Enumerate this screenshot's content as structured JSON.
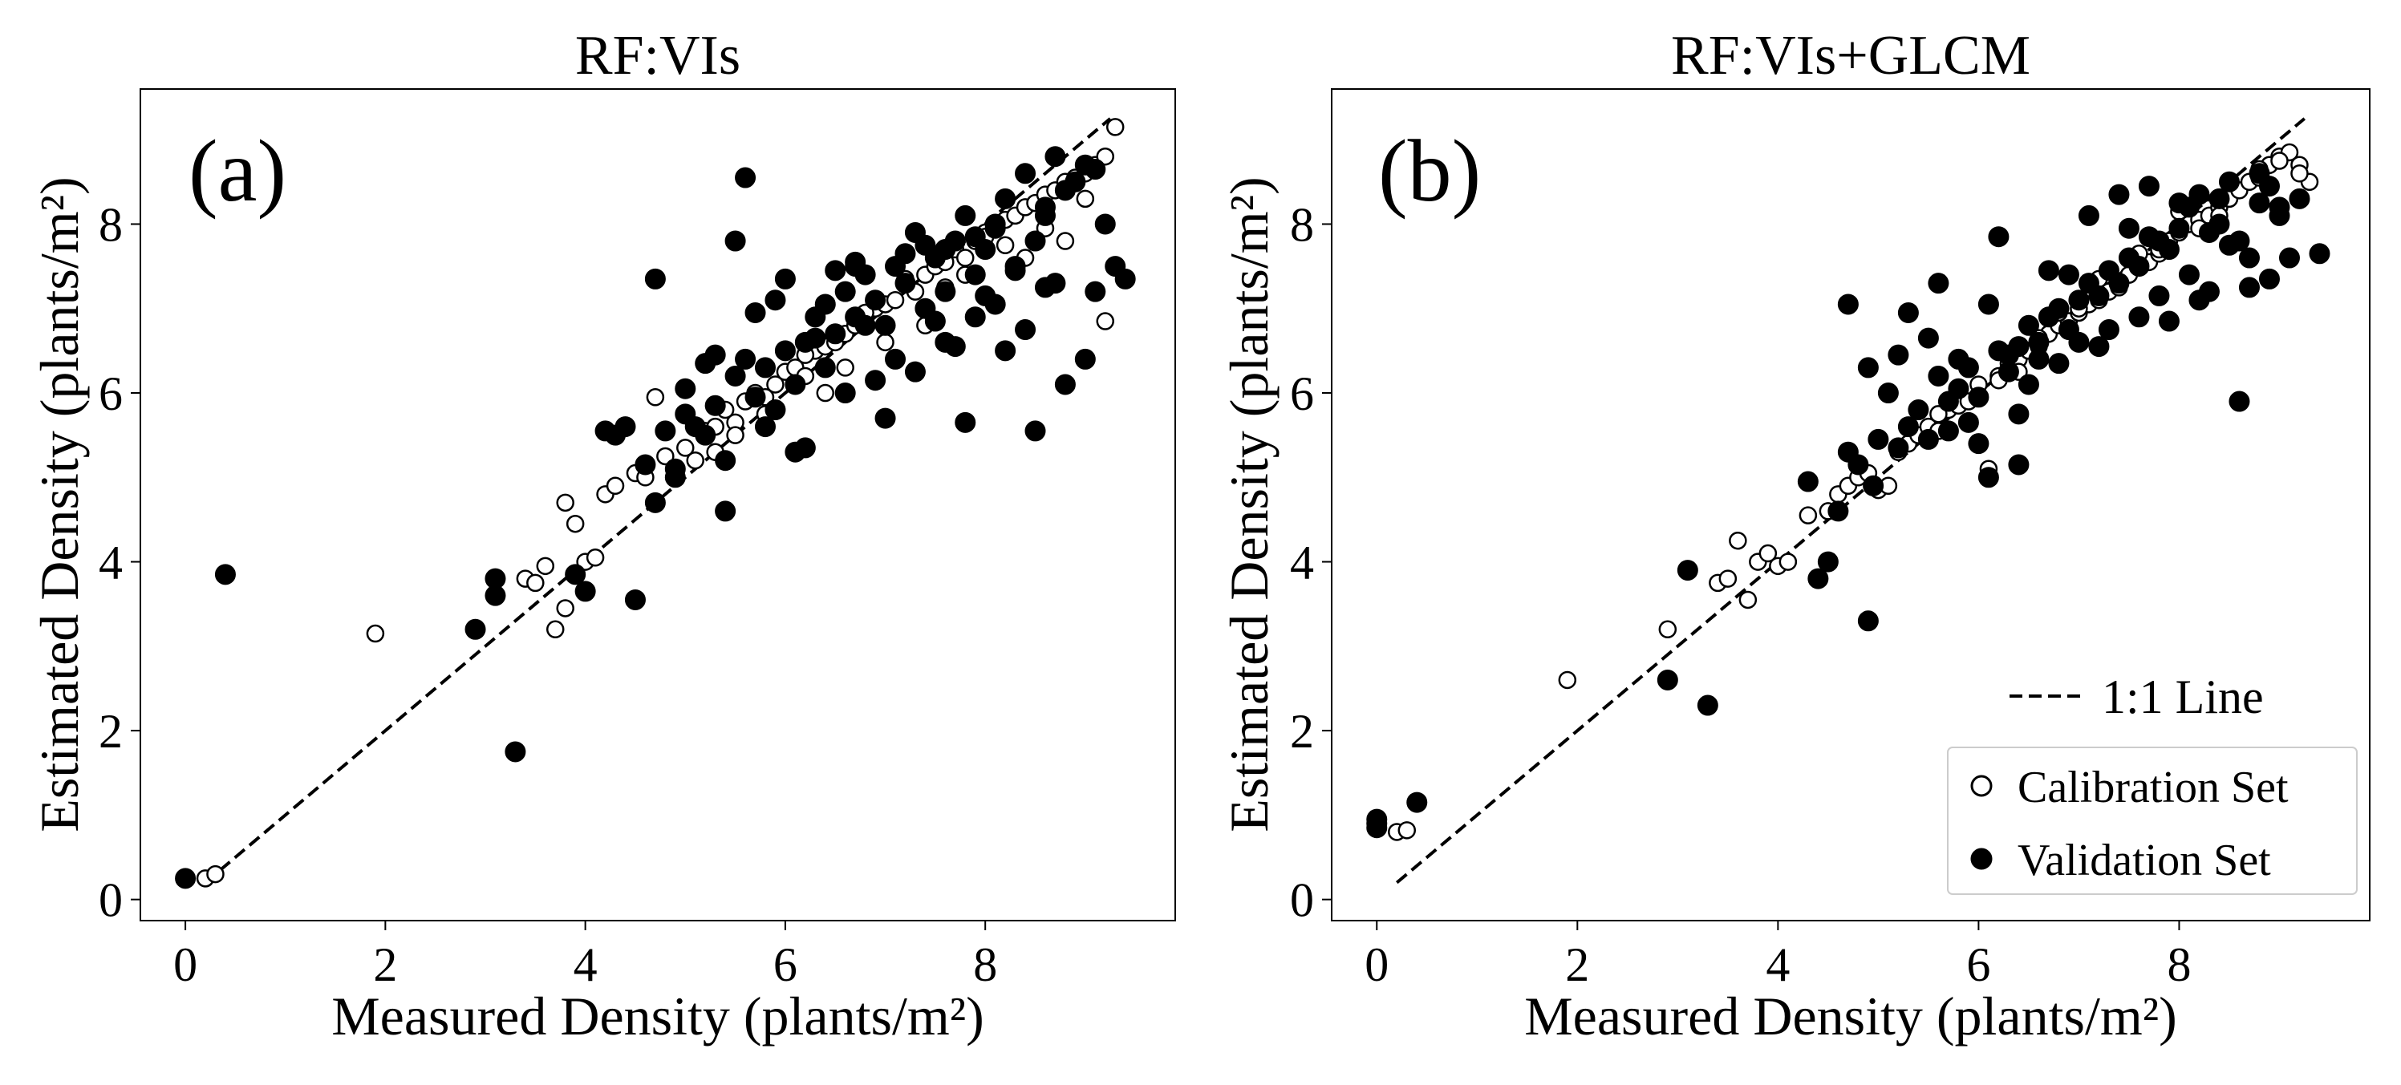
{
  "figure": {
    "legend": {
      "line_label": "1:1 Line",
      "calibration_label": "Calibration Set",
      "validation_label": "Validation Set"
    }
  },
  "colors": {
    "calibration_fill": "#ffffff",
    "marker_edge": "#000000",
    "validation_fill": "#000000",
    "one_to_one_line": "#000000"
  },
  "chart_data": [
    {
      "type": "scatter",
      "panel_label": "(a)",
      "title": "RF:VIs",
      "xlabel": "Measured Density (plants/m²)",
      "ylabel": "Estimated Density (plants/m²)",
      "xlim": [
        -0.45,
        9.9
      ],
      "ylim": [
        -0.25,
        9.6
      ],
      "xticks": [
        0,
        2,
        4,
        6,
        8
      ],
      "yticks": [
        0,
        2,
        4,
        6,
        8
      ],
      "one_to_one": [
        [
          0.2,
          0.2
        ],
        [
          9.25,
          9.25
        ]
      ],
      "legend": false,
      "series": [
        {
          "name": "Calibration Set",
          "x": [
            0.2,
            0.3,
            1.9,
            3.4,
            3.5,
            3.6,
            3.7,
            3.8,
            3.8,
            3.9,
            4.0,
            4.1,
            4.2,
            4.3,
            4.5,
            4.6,
            4.7,
            4.8,
            4.9,
            5.0,
            5.1,
            5.2,
            5.3,
            5.4,
            5.5,
            5.6,
            5.7,
            5.8,
            5.9,
            6.0,
            6.1,
            6.2,
            6.3,
            6.4,
            6.5,
            6.6,
            6.7,
            6.8,
            6.9,
            7.0,
            7.1,
            7.2,
            7.3,
            7.4,
            7.5,
            7.6,
            7.7,
            7.8,
            7.9,
            8.0,
            8.1,
            8.2,
            8.3,
            8.4,
            8.5,
            8.6,
            8.7,
            8.8,
            8.9,
            9.0,
            9.1,
            9.2,
            9.3,
            5.5,
            5.8,
            6.2,
            6.6,
            7.0,
            7.4,
            7.8,
            8.2,
            8.6,
            9.0,
            6.4,
            7.2,
            8.0,
            8.8,
            5.3,
            6.8,
            7.6,
            8.4,
            9.2
          ],
          "y": [
            0.25,
            0.3,
            3.15,
            3.8,
            3.75,
            3.95,
            3.2,
            3.45,
            4.7,
            4.45,
            4.0,
            4.05,
            4.8,
            4.9,
            5.05,
            5.0,
            5.95,
            5.25,
            5.1,
            5.35,
            5.2,
            5.55,
            5.6,
            5.8,
            5.65,
            5.9,
            6.0,
            5.75,
            6.1,
            6.25,
            6.3,
            6.2,
            6.5,
            6.55,
            6.6,
            6.7,
            6.8,
            6.9,
            7.0,
            7.05,
            7.1,
            7.3,
            7.2,
            7.4,
            7.5,
            7.55,
            7.7,
            7.6,
            7.8,
            7.9,
            8.0,
            8.05,
            8.1,
            8.2,
            8.25,
            8.35,
            8.4,
            8.5,
            8.55,
            8.6,
            8.7,
            8.8,
            9.15,
            5.5,
            5.95,
            6.45,
            6.3,
            6.6,
            6.8,
            7.4,
            7.75,
            7.95,
            8.3,
            6.0,
            7.35,
            7.85,
            7.8,
            5.3,
            6.95,
            7.25,
            7.6,
            6.85
          ]
        },
        {
          "name": "Validation Set",
          "x": [
            0.0,
            0.4,
            2.9,
            3.1,
            3.3,
            3.9,
            4.0,
            4.2,
            4.3,
            4.5,
            4.6,
            4.7,
            4.8,
            4.9,
            5.0,
            5.1,
            5.2,
            5.3,
            5.4,
            5.5,
            5.6,
            5.7,
            5.8,
            5.9,
            6.0,
            6.1,
            6.2,
            6.3,
            6.4,
            6.5,
            6.6,
            6.7,
            6.8,
            6.9,
            7.0,
            7.1,
            7.2,
            7.3,
            7.4,
            7.5,
            7.6,
            7.7,
            7.8,
            7.9,
            8.0,
            8.1,
            8.2,
            8.3,
            8.4,
            8.5,
            8.6,
            8.7,
            8.8,
            8.9,
            9.0,
            9.1,
            9.2,
            9.3,
            9.4,
            5.6,
            5.5,
            4.7,
            5.0,
            5.3,
            5.8,
            6.1,
            6.4,
            6.7,
            7.0,
            7.3,
            7.6,
            7.9,
            8.2,
            8.5,
            8.8,
            9.1,
            5.2,
            5.7,
            6.2,
            6.5,
            6.9,
            7.2,
            7.5,
            7.8,
            8.1,
            8.4,
            8.7,
            5.9,
            6.3,
            6.6,
            7.4,
            7.7,
            8.0,
            8.3,
            9.0,
            6.0,
            6.8,
            7.1,
            7.9,
            8.6,
            4.4,
            3.1,
            4.9,
            5.4,
            6.7,
            7.6,
            8.1,
            8.6
          ],
          "y": [
            0.25,
            3.85,
            3.2,
            3.6,
            1.75,
            3.85,
            3.65,
            5.55,
            5.5,
            3.55,
            5.15,
            4.7,
            5.55,
            5.1,
            5.75,
            5.6,
            5.5,
            5.85,
            5.2,
            6.2,
            6.4,
            5.95,
            6.3,
            5.8,
            6.5,
            6.1,
            6.6,
            6.9,
            6.3,
            6.7,
            7.2,
            6.9,
            7.4,
            7.1,
            6.8,
            7.5,
            7.3,
            7.9,
            7.0,
            7.6,
            7.2,
            7.8,
            8.1,
            7.4,
            7.7,
            8.0,
            8.3,
            7.5,
            8.6,
            7.8,
            8.2,
            8.8,
            8.4,
            8.5,
            8.7,
            7.2,
            8.0,
            7.5,
            7.35,
            8.55,
            7.8,
            7.35,
            6.05,
            6.45,
            5.6,
            5.3,
            7.05,
            7.55,
            5.7,
            6.25,
            6.6,
            7.85,
            6.5,
            5.55,
            6.1,
            8.65,
            6.35,
            6.95,
            5.35,
            7.45,
            6.15,
            7.65,
            6.85,
            5.65,
            7.05,
            6.75,
            7.3,
            7.1,
            6.65,
            6.0,
            7.75,
            6.55,
            7.15,
            7.45,
            6.4,
            7.35,
            6.8,
            6.4,
            6.9,
            8.1,
            5.6,
            3.8,
            5.0,
            4.6,
            7.5,
            7.7,
            7.95,
            7.25
          ]
        }
      ]
    },
    {
      "type": "scatter",
      "panel_label": "(b)",
      "title": "RF:VIs+GLCM",
      "xlabel": "Measured Density (plants/m²)",
      "ylabel": "Estimated Density (plants/m²)",
      "xlim": [
        -0.45,
        9.9
      ],
      "ylim": [
        -0.25,
        9.6
      ],
      "xticks": [
        0,
        2,
        4,
        6,
        8
      ],
      "yticks": [
        0,
        2,
        4,
        6,
        8
      ],
      "one_to_one": [
        [
          0.2,
          0.2
        ],
        [
          9.25,
          9.25
        ]
      ],
      "legend": true,
      "legend_position": "lower-right",
      "series": [
        {
          "name": "Calibration Set",
          "x": [
            0.2,
            0.3,
            1.9,
            2.9,
            3.4,
            3.5,
            3.6,
            3.7,
            3.8,
            3.9,
            4.0,
            4.1,
            4.3,
            4.5,
            4.6,
            4.7,
            4.8,
            4.9,
            5.0,
            5.1,
            5.2,
            5.3,
            5.4,
            5.5,
            5.6,
            5.7,
            5.8,
            5.9,
            6.0,
            6.1,
            6.2,
            6.3,
            6.4,
            6.5,
            6.6,
            6.7,
            6.8,
            6.9,
            7.0,
            7.1,
            7.2,
            7.3,
            7.4,
            7.5,
            7.6,
            7.7,
            7.8,
            7.9,
            8.0,
            8.1,
            8.2,
            8.3,
            8.4,
            8.5,
            8.6,
            8.7,
            8.8,
            8.9,
            9.0,
            9.1,
            9.2,
            9.3,
            5.6,
            6.0,
            6.4,
            6.8,
            7.2,
            7.6,
            8.0,
            8.4,
            8.8,
            9.2,
            5.8,
            6.6,
            7.4,
            8.2,
            9.0,
            6.2,
            7.0,
            7.8
          ],
          "y": [
            0.8,
            0.82,
            2.6,
            3.2,
            3.75,
            3.8,
            4.25,
            3.55,
            4.0,
            4.1,
            3.95,
            4.0,
            4.55,
            4.6,
            4.8,
            4.9,
            5.0,
            5.05,
            4.85,
            4.9,
            5.3,
            5.4,
            5.5,
            5.6,
            5.55,
            5.8,
            5.85,
            5.9,
            5.95,
            5.1,
            6.2,
            6.35,
            6.4,
            6.5,
            6.55,
            6.7,
            6.8,
            6.85,
            6.95,
            7.05,
            7.1,
            7.2,
            7.3,
            7.4,
            7.5,
            7.55,
            7.65,
            7.8,
            7.9,
            8.0,
            8.05,
            8.1,
            8.2,
            8.3,
            8.4,
            8.5,
            8.55,
            8.7,
            8.8,
            8.85,
            8.7,
            8.5,
            5.75,
            6.1,
            6.25,
            6.95,
            7.35,
            7.65,
            8.15,
            8.1,
            8.65,
            8.6,
            6.05,
            6.65,
            7.25,
            7.95,
            8.75,
            6.15,
            7.0,
            7.7
          ]
        },
        {
          "name": "Validation Set",
          "x": [
            0.0,
            0.0,
            0.0,
            0.4,
            2.9,
            3.1,
            3.3,
            4.3,
            4.4,
            4.5,
            4.6,
            4.7,
            4.8,
            4.9,
            4.95,
            5.0,
            5.1,
            5.2,
            5.3,
            5.4,
            5.5,
            5.6,
            5.7,
            5.8,
            5.9,
            6.0,
            6.1,
            6.2,
            6.3,
            6.4,
            6.5,
            6.6,
            6.7,
            6.8,
            6.9,
            7.0,
            7.1,
            7.2,
            7.3,
            7.4,
            7.5,
            7.6,
            7.7,
            7.8,
            7.9,
            8.0,
            8.1,
            8.2,
            8.3,
            8.4,
            8.5,
            8.6,
            8.7,
            8.8,
            8.9,
            9.0,
            9.1,
            9.2,
            9.4,
            4.7,
            5.3,
            5.6,
            5.9,
            6.2,
            6.5,
            6.8,
            7.1,
            7.4,
            7.7,
            8.0,
            8.3,
            8.6,
            8.9,
            5.2,
            5.5,
            5.8,
            6.1,
            6.4,
            6.7,
            7.0,
            7.3,
            7.6,
            7.9,
            8.2,
            8.5,
            8.8,
            6.0,
            6.3,
            6.6,
            6.9,
            7.2,
            7.5,
            7.8,
            8.1,
            8.4,
            8.7,
            9.0,
            6.4,
            5.7,
            4.9
          ],
          "y": [
            0.85,
            0.9,
            0.95,
            1.15,
            2.6,
            3.9,
            2.3,
            4.95,
            3.8,
            4.0,
            4.6,
            5.3,
            5.15,
            3.3,
            4.9,
            5.45,
            6.0,
            5.35,
            5.6,
            5.8,
            5.45,
            6.2,
            5.9,
            6.4,
            6.3,
            5.95,
            5.0,
            6.5,
            6.45,
            6.55,
            6.8,
            6.6,
            6.9,
            7.0,
            6.75,
            7.1,
            7.3,
            7.15,
            7.45,
            7.3,
            7.6,
            7.5,
            7.85,
            7.8,
            7.7,
            7.95,
            8.2,
            8.35,
            7.9,
            8.3,
            8.5,
            7.8,
            7.6,
            8.6,
            8.45,
            8.2,
            7.6,
            8.3,
            7.65,
            7.05,
            6.95,
            7.3,
            5.65,
            7.85,
            6.1,
            6.35,
            8.1,
            8.35,
            8.45,
            8.25,
            7.2,
            5.9,
            7.35,
            6.45,
            6.65,
            6.05,
            7.05,
            5.15,
            7.45,
            6.6,
            6.75,
            6.9,
            6.85,
            7.1,
            7.75,
            8.25,
            5.4,
            6.25,
            6.4,
            7.4,
            6.55,
            7.95,
            7.15,
            7.4,
            8.0,
            7.25,
            8.1,
            5.75,
            5.55,
            6.3
          ]
        }
      ]
    }
  ]
}
